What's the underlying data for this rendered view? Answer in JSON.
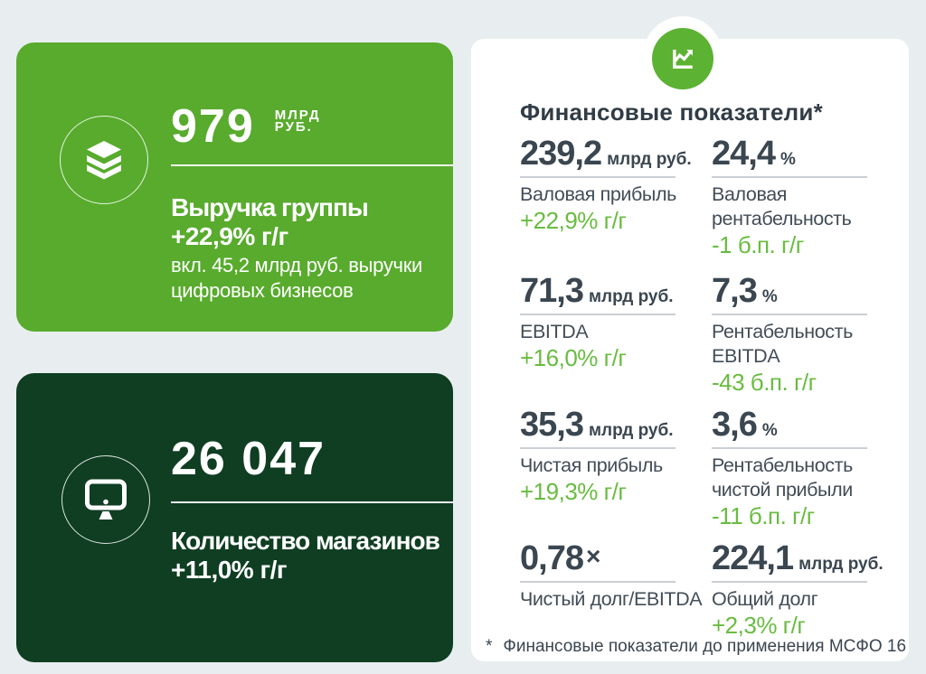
{
  "page": {
    "background": "#E8EEEF"
  },
  "cards": {
    "revenue": {
      "value": "979",
      "unit_lines": "МЛРД\nРУБ.",
      "title": "Выручка группы",
      "change": "+22,9% г/г",
      "note": "вкл. 45,2 млрд руб. выручки\nцифровых бизнесов",
      "color": "#58AB2D",
      "icon": "layers-stack-icon"
    },
    "stores": {
      "value": "26 047",
      "title": "Количество магазинов",
      "change": "+11,0% г/г",
      "color": "#0F3E22",
      "icon": "monitor-icon"
    }
  },
  "financial_panel": {
    "title": "Финансовые показатели*",
    "icon": "line-chart-icon",
    "accent_color": "#5CB232",
    "footnote_marker": "*",
    "footnote_text": "Финансовые показатели до применения МСФО 16",
    "metrics": [
      {
        "value": "239,2",
        "unit": "млрд руб.",
        "label": "Валовая прибыль",
        "change": "+22,9% г/г"
      },
      {
        "value": "24,4",
        "unit": "%",
        "label": "Валовая\nрентабельность",
        "change": "-1 б.п. г/г"
      },
      {
        "value": "71,3",
        "unit": "млрд руб.",
        "label": "EBITDA",
        "change": "+16,0% г/г"
      },
      {
        "value": "7,3",
        "unit": "%",
        "label": "Рентабельность\nEBITDA",
        "change": "-43 б.п. г/г"
      },
      {
        "value": "35,3",
        "unit": "млрд руб.",
        "label": "Чистая прибыль",
        "change": "+19,3% г/г"
      },
      {
        "value": "3,6",
        "unit": "%",
        "label": "Рентабельность\nчистой прибыли",
        "change": "-11 б.п. г/г"
      },
      {
        "value": "0,78",
        "unit": "×",
        "label": "Чистый долг/EBITDA",
        "change": ""
      },
      {
        "value": "224,1",
        "unit": "млрд руб.",
        "label": "Общий долг",
        "change": "+2,3% г/г"
      }
    ]
  },
  "chart_data": {
    "type": "table",
    "title": "Финансовые показатели*",
    "kpis": [
      {
        "name": "Выручка группы",
        "value": 979,
        "unit": "млрд руб.",
        "change": "+22,9% г/г",
        "note": "вкл. 45,2 млрд руб. выручки цифровых бизнесов"
      },
      {
        "name": "Количество магазинов",
        "value": 26047,
        "change": "+11,0% г/г"
      },
      {
        "name": "Валовая прибыль",
        "value": 239.2,
        "unit": "млрд руб.",
        "change": "+22,9% г/г"
      },
      {
        "name": "Валовая рентабельность",
        "value": 24.4,
        "unit": "%",
        "change": "-1 б.п. г/г"
      },
      {
        "name": "EBITDA",
        "value": 71.3,
        "unit": "млрд руб.",
        "change": "+16,0% г/г"
      },
      {
        "name": "Рентабельность EBITDA",
        "value": 7.3,
        "unit": "%",
        "change": "-43 б.п. г/г"
      },
      {
        "name": "Чистая прибыль",
        "value": 35.3,
        "unit": "млрд руб.",
        "change": "+19,3% г/г"
      },
      {
        "name": "Рентабельность чистой прибыли",
        "value": 3.6,
        "unit": "%",
        "change": "-11 б.п. г/г"
      },
      {
        "name": "Чистый долг/EBITDA",
        "value": 0.78,
        "unit": "×"
      },
      {
        "name": "Общий долг",
        "value": 224.1,
        "unit": "млрд руб.",
        "change": "+2,3% г/г"
      }
    ],
    "footnote": "* Финансовые показатели до применения МСФО 16"
  }
}
